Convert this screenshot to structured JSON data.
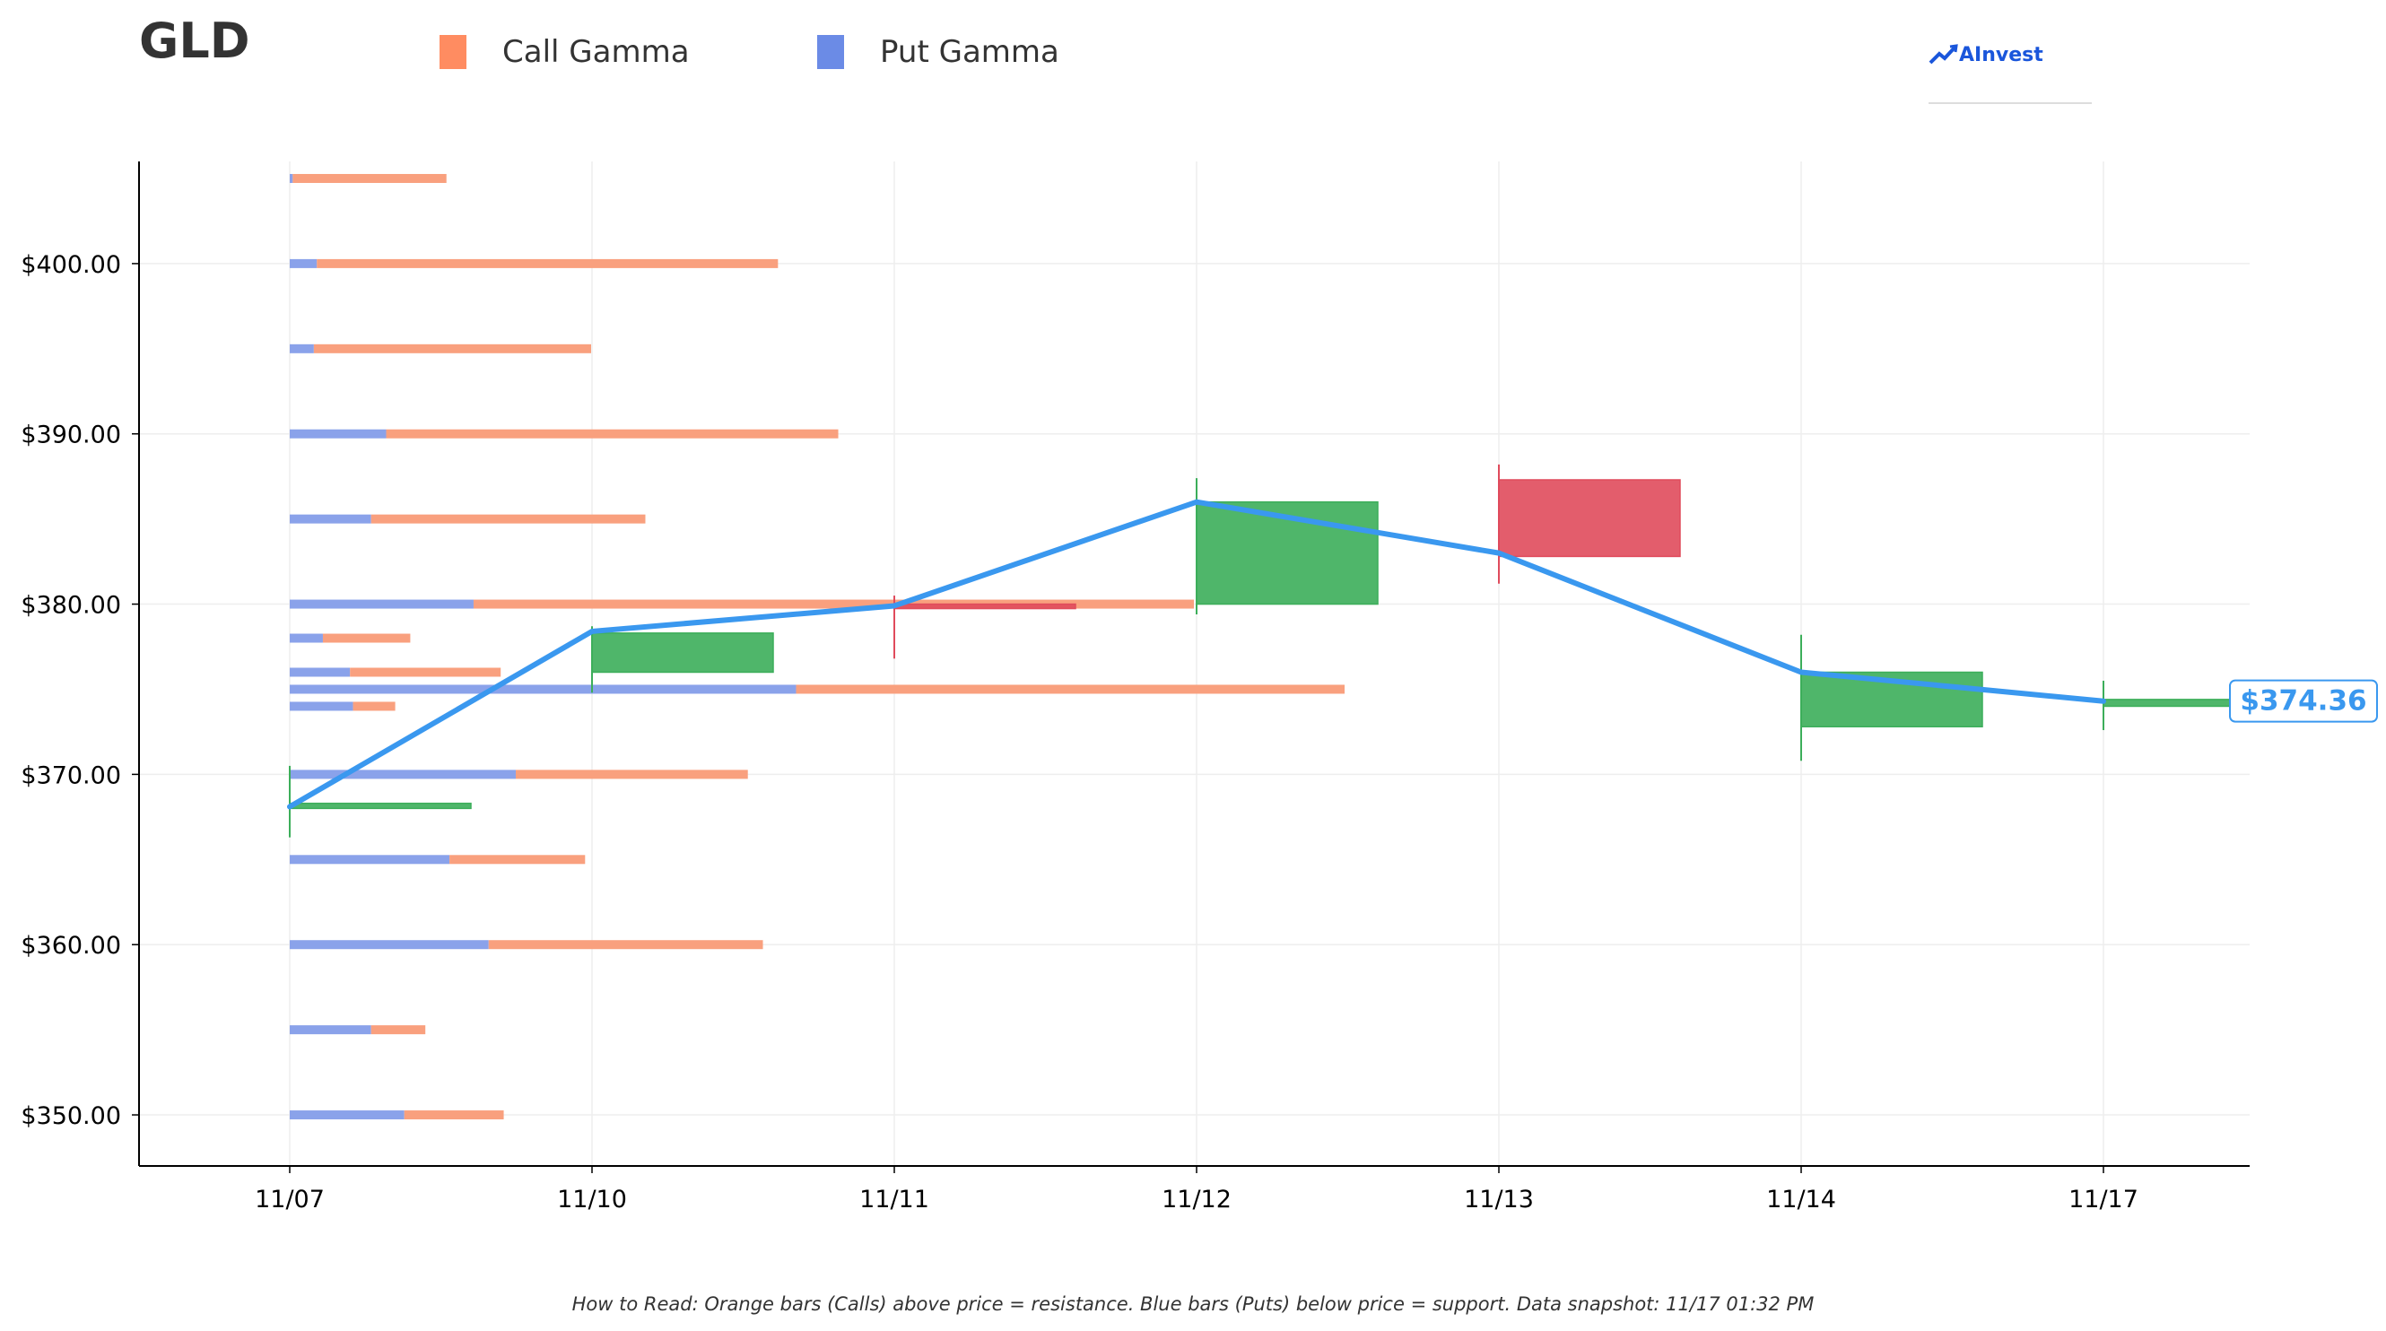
{
  "header": {
    "ticker": "GLD",
    "brand": "AInvest"
  },
  "legend": {
    "items": [
      {
        "label": "Call Gamma",
        "color": "#ff8c61"
      },
      {
        "label": "Put Gamma",
        "color": "#6b8be6"
      }
    ]
  },
  "footnote": "How to Read: Orange bars (Calls) above price = resistance. Blue bars (Puts) below price = support. Data snapshot: 11/17 01:32 PM",
  "colors": {
    "call": "#f9a07e",
    "put": "#8aa2ea",
    "up": "#3cae5a",
    "down": "#e04b5c",
    "line": "#3a98ef",
    "grid": "#eeeeee"
  },
  "chart_data": {
    "type": "candlestick",
    "title": "GLD",
    "categories": [
      "11/07",
      "11/10",
      "11/11",
      "11/12",
      "11/13",
      "11/14",
      "11/17"
    ],
    "ylim": [
      347,
      406
    ],
    "ytick_labels": [
      "$350.00",
      "$360.00",
      "$370.00",
      "$380.00",
      "$390.00",
      "$400.00"
    ],
    "grid": true,
    "candles": [
      {
        "date": "11/07",
        "open": 368.0,
        "close": 368.3,
        "high": 370.5,
        "low": 366.3
      },
      {
        "date": "11/10",
        "open": 376.0,
        "close": 378.3,
        "high": 378.7,
        "low": 374.8
      },
      {
        "date": "11/11",
        "open": 380.0,
        "close": 379.9,
        "high": 380.5,
        "low": 376.8
      },
      {
        "date": "11/12",
        "open": 380.0,
        "close": 386.0,
        "high": 387.4,
        "low": 379.4
      },
      {
        "date": "11/13",
        "open": 387.3,
        "close": 382.8,
        "high": 388.2,
        "low": 381.2
      },
      {
        "date": "11/14",
        "open": 372.8,
        "close": 376.0,
        "high": 378.2,
        "low": 370.8
      },
      {
        "date": "11/17",
        "open": 374.0,
        "close": 374.4,
        "high": 375.5,
        "low": 372.6
      }
    ],
    "close_line": [
      368.1,
      378.4,
      379.9,
      386.0,
      383.0,
      376.0,
      374.3
    ],
    "last_price_label": "$374.36",
    "last_price": 374.36,
    "gamma_bars": [
      {
        "strike": 405,
        "put": 0.1,
        "call": 5.1
      },
      {
        "strike": 400,
        "put": 0.9,
        "call": 15.3
      },
      {
        "strike": 395,
        "put": 0.8,
        "call": 9.2
      },
      {
        "strike": 390,
        "put": 3.2,
        "call": 15.0
      },
      {
        "strike": 385,
        "put": 2.7,
        "call": 9.1
      },
      {
        "strike": 380,
        "put": 6.1,
        "call": 23.9
      },
      {
        "strike": 378,
        "put": 1.1,
        "call": 2.9
      },
      {
        "strike": 376,
        "put": 2.0,
        "call": 5.0
      },
      {
        "strike": 375,
        "put": 16.8,
        "call": 18.2
      },
      {
        "strike": 374,
        "put": 2.1,
        "call": 1.4
      },
      {
        "strike": 370,
        "put": 7.5,
        "call": 7.7
      },
      {
        "strike": 365,
        "put": 5.3,
        "call": 4.5
      },
      {
        "strike": 360,
        "put": 6.6,
        "call": 9.1
      },
      {
        "strike": 355,
        "put": 2.7,
        "call": 1.8
      },
      {
        "strike": 350,
        "put": 3.8,
        "call": 3.3
      }
    ]
  }
}
